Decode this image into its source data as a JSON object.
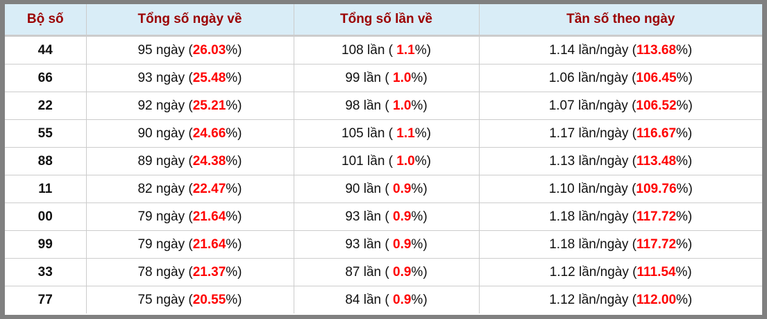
{
  "colors": {
    "header_bg": "#d9edf7",
    "header_text": "#9b0000",
    "highlight": "#ff0000",
    "frame": "#808080"
  },
  "headers": [
    "Bộ số",
    "Tổng số ngày về",
    "Tổng số lần về",
    "Tần số theo ngày"
  ],
  "rows": [
    {
      "bo_so": "44",
      "ngay": "95",
      "ngay_pct": "26.03",
      "lan": "108",
      "lan_pct": "1.1",
      "tan_so": "1.14",
      "tan_so_pct": "113.68"
    },
    {
      "bo_so": "66",
      "ngay": "93",
      "ngay_pct": "25.48",
      "lan": "99",
      "lan_pct": "1.0",
      "tan_so": "1.06",
      "tan_so_pct": "106.45"
    },
    {
      "bo_so": "22",
      "ngay": "92",
      "ngay_pct": "25.21",
      "lan": "98",
      "lan_pct": "1.0",
      "tan_so": "1.07",
      "tan_so_pct": "106.52"
    },
    {
      "bo_so": "55",
      "ngay": "90",
      "ngay_pct": "24.66",
      "lan": "105",
      "lan_pct": "1.1",
      "tan_so": "1.17",
      "tan_so_pct": "116.67"
    },
    {
      "bo_so": "88",
      "ngay": "89",
      "ngay_pct": "24.38",
      "lan": "101",
      "lan_pct": "1.0",
      "tan_so": "1.13",
      "tan_so_pct": "113.48"
    },
    {
      "bo_so": "11",
      "ngay": "82",
      "ngay_pct": "22.47",
      "lan": "90",
      "lan_pct": "0.9",
      "tan_so": "1.10",
      "tan_so_pct": "109.76"
    },
    {
      "bo_so": "00",
      "ngay": "79",
      "ngay_pct": "21.64",
      "lan": "93",
      "lan_pct": "0.9",
      "tan_so": "1.18",
      "tan_so_pct": "117.72"
    },
    {
      "bo_so": "99",
      "ngay": "79",
      "ngay_pct": "21.64",
      "lan": "93",
      "lan_pct": "0.9",
      "tan_so": "1.18",
      "tan_so_pct": "117.72"
    },
    {
      "bo_so": "33",
      "ngay": "78",
      "ngay_pct": "21.37",
      "lan": "87",
      "lan_pct": "0.9",
      "tan_so": "1.12",
      "tan_so_pct": "111.54"
    },
    {
      "bo_so": "77",
      "ngay": "75",
      "ngay_pct": "20.55",
      "lan": "84",
      "lan_pct": "0.9",
      "tan_so": "1.12",
      "tan_so_pct": "112.00"
    }
  ],
  "units": {
    "ngay": "ngày",
    "lan": "lần",
    "tan_so": "lần/ngày"
  }
}
